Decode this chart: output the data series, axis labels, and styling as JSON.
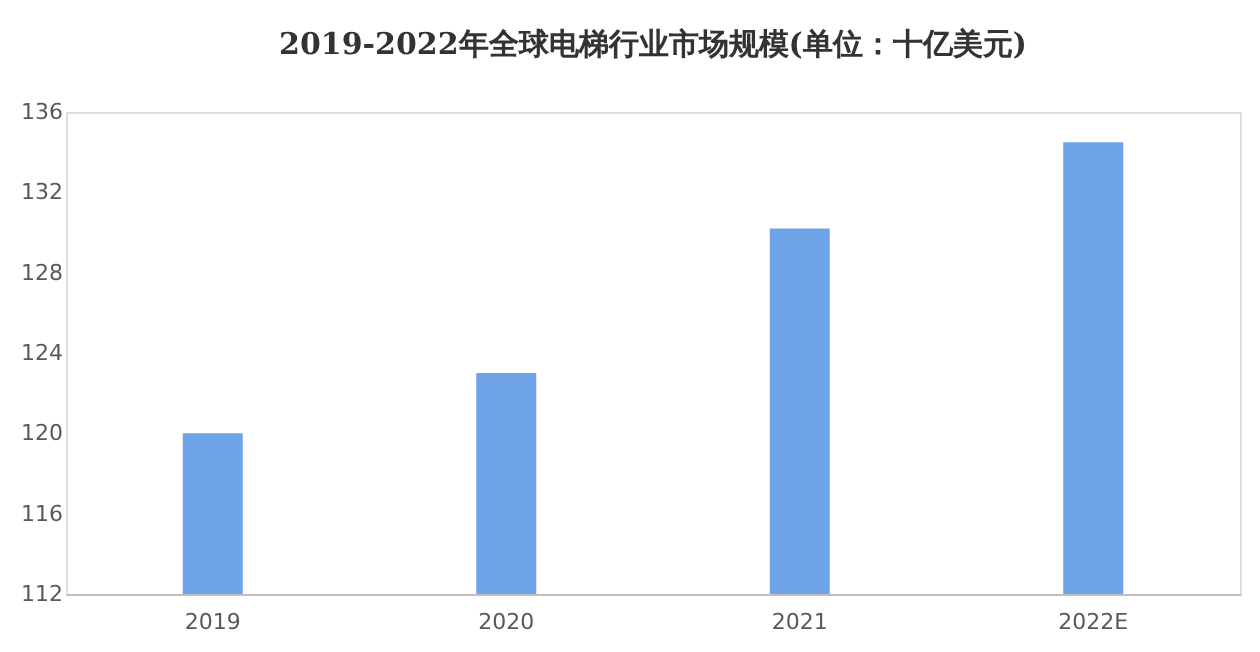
{
  "chart_data": {
    "type": "bar",
    "title": "2019-2022年全球电梯行业市场规模(单位：十亿美元)",
    "categories": [
      "2019",
      "2020",
      "2021",
      "2022E"
    ],
    "values": [
      120,
      123,
      130.2,
      134.5
    ],
    "color": "#6fa3e8",
    "ylim": [
      112,
      136
    ],
    "yticks": [
      112,
      116,
      120,
      124,
      128,
      132,
      136
    ],
    "grid": false
  }
}
